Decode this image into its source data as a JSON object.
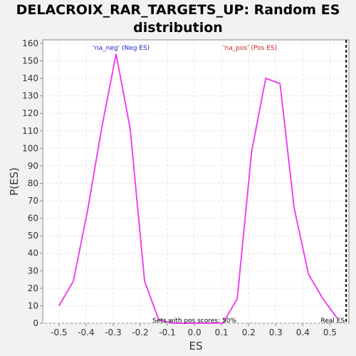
{
  "chart_data": {
    "type": "line",
    "title": "DELACROIX_RAR_TARGETS_UP: Random ES distribution",
    "xlabel": "ES",
    "ylabel": "P(ES)",
    "xlim": [
      -0.56,
      0.57
    ],
    "ylim": [
      0,
      162
    ],
    "x_ticks": [
      -0.5,
      -0.4,
      -0.3,
      -0.2,
      -0.1,
      0.0,
      0.1,
      0.2,
      0.3,
      0.4,
      0.5
    ],
    "x_tick_labels": [
      "-0.5",
      "-0.4",
      "-0.3",
      "-0.2",
      "-0.1",
      "0.0",
      "0.1",
      "0.2",
      "0.3",
      "0.4",
      "0.5"
    ],
    "y_ticks": [
      0,
      10,
      20,
      30,
      40,
      50,
      60,
      70,
      80,
      90,
      100,
      110,
      120,
      130,
      140,
      150,
      160
    ],
    "grid": true,
    "series": [
      {
        "color": "#ee44ee",
        "x": [
          -0.5,
          -0.447,
          -0.395,
          -0.342,
          -0.289,
          -0.237,
          -0.184,
          -0.132,
          -0.079,
          -0.026,
          0.026,
          0.079,
          0.105,
          0.158,
          0.211,
          0.263,
          0.316,
          0.368,
          0.421,
          0.474,
          0.526
        ],
        "y": [
          10,
          24,
          64,
          112,
          154,
          111,
          24,
          2,
          0,
          0,
          0,
          0,
          0,
          14,
          98,
          140,
          137,
          66,
          28,
          14,
          3
        ]
      }
    ],
    "annotations": {
      "neg_label": "'na_neg' (Neg ES)",
      "neg_color": "#2222cc",
      "pos_label": "'na_pos' (Pos ES)",
      "pos_color": "#cc2222",
      "sets_label": "Sets with pos scores: 50%",
      "real_es_label": "Real ES",
      "real_es_value": 0.56
    }
  }
}
